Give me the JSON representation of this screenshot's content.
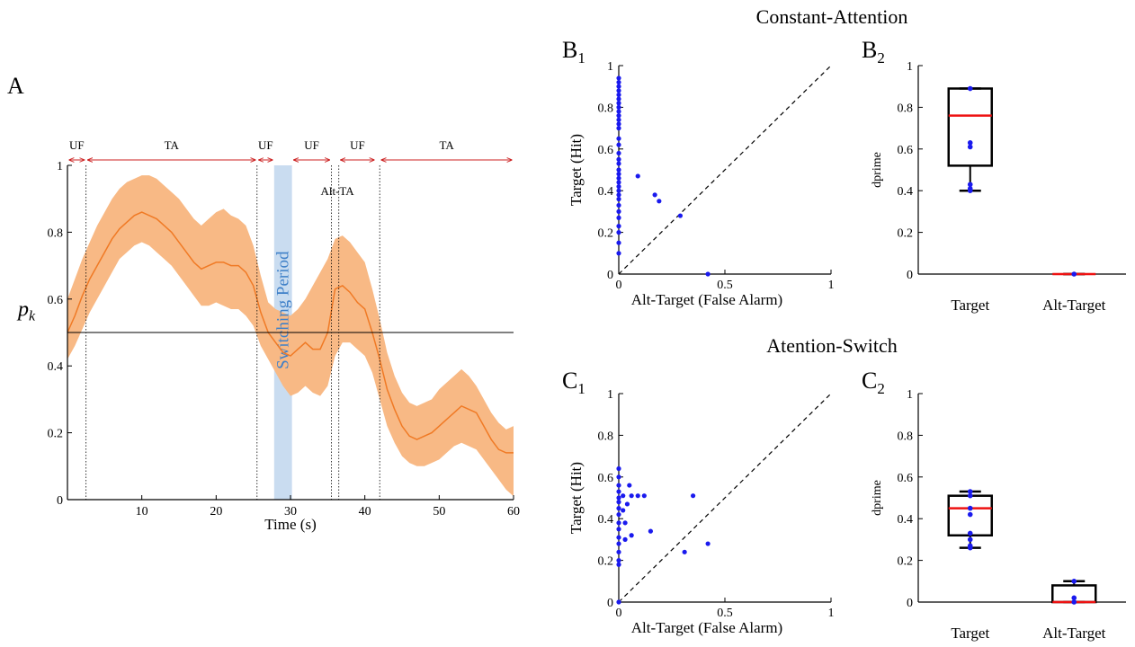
{
  "figure": {
    "titles": {
      "constant": "Constant-Attention",
      "switch": "Atention-Switch"
    },
    "panel_labels": {
      "A": "A",
      "B1": "B",
      "B1_sub": "1",
      "B2": "B",
      "B2_sub": "2",
      "C1": "C",
      "C1_sub": "1",
      "C2": "C",
      "C2_sub": "2"
    }
  },
  "chart_data": [
    {
      "id": "A",
      "type": "area",
      "xlabel": "Time (s)",
      "ylabel": "p_k",
      "ylabel_main": "p",
      "ylabel_sub": "k",
      "xlim": [
        0,
        60
      ],
      "ylim": [
        0,
        1
      ],
      "xticks": [
        10,
        20,
        30,
        40,
        50,
        60
      ],
      "yticks": [
        0,
        0.2,
        0.4,
        0.6,
        0.8,
        1
      ],
      "xtick_labels": [
        "10",
        "20",
        "30",
        "40",
        "50",
        "60"
      ],
      "ytick_labels": [
        "0",
        "0.2",
        "0.4",
        "0.6",
        "0.8",
        "1"
      ],
      "colors": {
        "band": "#f8b985",
        "mean": "#f07a25",
        "segments": "#cc2222",
        "switch": "#c9dcf0",
        "switch_text": "#3f80c8"
      },
      "reference_line": 0.5,
      "switch_period": {
        "label": "Switching Period",
        "x": [
          27.8,
          30.2
        ]
      },
      "dividers": [
        2.5,
        25.5,
        35.5,
        36.5,
        42
      ],
      "segments": [
        {
          "label": "UF",
          "x": [
            0,
            2.5
          ]
        },
        {
          "label": "TA",
          "x": [
            2.5,
            25.5
          ]
        },
        {
          "label": "UF",
          "x": [
            25.5,
            27.8
          ]
        },
        {
          "label": "UF",
          "x": [
            30.2,
            35.5
          ]
        },
        {
          "label": "UF",
          "x": [
            36.5,
            41.5
          ]
        },
        {
          "label": "TA",
          "x": [
            42,
            60
          ]
        }
      ],
      "annotation": "Alt-TA",
      "mean": {
        "x": [
          0,
          1,
          2,
          3,
          4,
          5,
          6,
          7,
          8,
          9,
          10,
          11,
          12,
          13,
          14,
          15,
          16,
          17,
          18,
          19,
          20,
          21,
          22,
          23,
          24,
          25,
          26,
          27,
          28,
          29,
          30,
          31,
          32,
          33,
          34,
          35,
          36,
          37,
          38,
          39,
          40,
          41,
          42,
          43,
          44,
          45,
          46,
          47,
          48,
          49,
          50,
          51,
          52,
          53,
          54,
          55,
          56,
          57,
          58,
          59,
          60
        ],
        "y": [
          0.5,
          0.55,
          0.61,
          0.66,
          0.7,
          0.74,
          0.78,
          0.81,
          0.83,
          0.85,
          0.86,
          0.85,
          0.84,
          0.82,
          0.8,
          0.77,
          0.74,
          0.71,
          0.69,
          0.7,
          0.71,
          0.71,
          0.7,
          0.7,
          0.68,
          0.64,
          0.56,
          0.5,
          0.47,
          0.44,
          0.43,
          0.45,
          0.47,
          0.45,
          0.45,
          0.5,
          0.63,
          0.64,
          0.62,
          0.59,
          0.57,
          0.5,
          0.42,
          0.33,
          0.27,
          0.22,
          0.19,
          0.18,
          0.19,
          0.2,
          0.22,
          0.24,
          0.26,
          0.28,
          0.27,
          0.26,
          0.22,
          0.18,
          0.15,
          0.14,
          0.14
        ]
      },
      "upper": [
        0.6,
        0.66,
        0.72,
        0.77,
        0.82,
        0.86,
        0.9,
        0.93,
        0.95,
        0.96,
        0.97,
        0.97,
        0.96,
        0.94,
        0.92,
        0.9,
        0.87,
        0.84,
        0.82,
        0.84,
        0.86,
        0.87,
        0.85,
        0.84,
        0.82,
        0.76,
        0.67,
        0.59,
        0.57,
        0.56,
        0.55,
        0.57,
        0.6,
        0.64,
        0.68,
        0.72,
        0.78,
        0.79,
        0.77,
        0.74,
        0.71,
        0.63,
        0.54,
        0.44,
        0.37,
        0.32,
        0.29,
        0.28,
        0.29,
        0.3,
        0.33,
        0.35,
        0.37,
        0.39,
        0.37,
        0.34,
        0.3,
        0.26,
        0.23,
        0.21,
        0.22
      ],
      "lower": [
        0.42,
        0.46,
        0.51,
        0.56,
        0.6,
        0.64,
        0.68,
        0.72,
        0.74,
        0.76,
        0.77,
        0.76,
        0.74,
        0.72,
        0.7,
        0.67,
        0.64,
        0.61,
        0.58,
        0.58,
        0.59,
        0.58,
        0.57,
        0.57,
        0.55,
        0.52,
        0.46,
        0.42,
        0.38,
        0.34,
        0.31,
        0.32,
        0.34,
        0.32,
        0.31,
        0.34,
        0.43,
        0.47,
        0.47,
        0.45,
        0.43,
        0.38,
        0.3,
        0.22,
        0.17,
        0.13,
        0.11,
        0.1,
        0.1,
        0.11,
        0.12,
        0.14,
        0.16,
        0.17,
        0.16,
        0.15,
        0.12,
        0.09,
        0.06,
        0.03,
        0.01
      ]
    },
    {
      "id": "B1",
      "type": "scatter",
      "xlabel": "Alt-Target (False Alarm)",
      "ylabel": "Target (Hit)",
      "xlim": [
        0,
        1
      ],
      "ylim": [
        0,
        1
      ],
      "xticks": [
        0,
        0.5,
        1
      ],
      "yticks": [
        0,
        0.2,
        0.4,
        0.6,
        0.8,
        1
      ],
      "xtick_labels": [
        "0",
        "0.5",
        "1"
      ],
      "ytick_labels": [
        "0",
        "0.2",
        "0.4",
        "0.6",
        "0.8",
        "1"
      ],
      "color": "#1a1aee",
      "points": [
        [
          0,
          0.94
        ],
        [
          0,
          0.92
        ],
        [
          0,
          0.9
        ],
        [
          0,
          0.88
        ],
        [
          0,
          0.86
        ],
        [
          0,
          0.84
        ],
        [
          0,
          0.82
        ],
        [
          0,
          0.8
        ],
        [
          0,
          0.78
        ],
        [
          0,
          0.76
        ],
        [
          0,
          0.74
        ],
        [
          0,
          0.72
        ],
        [
          0,
          0.7
        ],
        [
          0,
          0.65
        ],
        [
          0,
          0.62
        ],
        [
          0,
          0.58
        ],
        [
          0,
          0.55
        ],
        [
          0,
          0.53
        ],
        [
          0,
          0.5
        ],
        [
          0,
          0.48
        ],
        [
          0,
          0.46
        ],
        [
          0,
          0.44
        ],
        [
          0,
          0.42
        ],
        [
          0,
          0.4
        ],
        [
          0,
          0.38
        ],
        [
          0,
          0.36
        ],
        [
          0,
          0.33
        ],
        [
          0,
          0.3
        ],
        [
          0,
          0.27
        ],
        [
          0,
          0.23
        ],
        [
          0,
          0.2
        ],
        [
          0,
          0.15
        ],
        [
          0,
          0.1
        ],
        [
          0.09,
          0.47
        ],
        [
          0.17,
          0.38
        ],
        [
          0.19,
          0.35
        ],
        [
          0.29,
          0.28
        ],
        [
          0.42,
          0
        ]
      ]
    },
    {
      "id": "B2",
      "type": "box",
      "ylabel": "dprime",
      "ylim": [
        0,
        1
      ],
      "yticks": [
        0,
        0.2,
        0.4,
        0.6,
        0.8,
        1
      ],
      "ytick_labels": [
        "0",
        "0.2",
        "0.4",
        "0.6",
        "0.8",
        "1"
      ],
      "categories": [
        "Target",
        "Alt-Target"
      ],
      "colors": {
        "box": "#000000",
        "median": "#ee1111",
        "points": "#1a1aee"
      },
      "boxes": [
        {
          "q1": 0.52,
          "median": 0.76,
          "q3": 0.89,
          "whisker_low": 0.4,
          "whisker_high": 0.89,
          "points": [
            0.89,
            0.63,
            0.61,
            0.43,
            0.41,
            0.4
          ]
        },
        {
          "q1": 0,
          "median": 0,
          "q3": 0,
          "whisker_low": 0,
          "whisker_high": 0,
          "points": [
            0
          ]
        }
      ]
    },
    {
      "id": "C1",
      "type": "scatter",
      "xlabel": "Alt-Target (False Alarm)",
      "ylabel": "Target (Hit)",
      "xlim": [
        0,
        1
      ],
      "ylim": [
        0,
        1
      ],
      "xticks": [
        0,
        0.5,
        1
      ],
      "yticks": [
        0,
        0.2,
        0.4,
        0.6,
        0.8,
        1
      ],
      "xtick_labels": [
        "0",
        "0.5",
        "1"
      ],
      "ytick_labels": [
        "0",
        "0.2",
        "0.4",
        "0.6",
        "0.8",
        "1"
      ],
      "color": "#1a1aee",
      "points": [
        [
          0,
          0.64
        ],
        [
          0,
          0.6
        ],
        [
          0,
          0.56
        ],
        [
          0,
          0.53
        ],
        [
          0,
          0.5
        ],
        [
          0,
          0.48
        ],
        [
          0,
          0.45
        ],
        [
          0,
          0.42
        ],
        [
          0,
          0.38
        ],
        [
          0,
          0.35
        ],
        [
          0,
          0.31
        ],
        [
          0,
          0.28
        ],
        [
          0,
          0.24
        ],
        [
          0,
          0.2
        ],
        [
          0,
          0.18
        ],
        [
          0,
          0
        ],
        [
          0.02,
          0.51
        ],
        [
          0.02,
          0.44
        ],
        [
          0.03,
          0.38
        ],
        [
          0.03,
          0.3
        ],
        [
          0.04,
          0.47
        ],
        [
          0.05,
          0.56
        ],
        [
          0.06,
          0.51
        ],
        [
          0.06,
          0.32
        ],
        [
          0.09,
          0.51
        ],
        [
          0.12,
          0.51
        ],
        [
          0.15,
          0.34
        ],
        [
          0.31,
          0.24
        ],
        [
          0.35,
          0.51
        ],
        [
          0.42,
          0.28
        ]
      ]
    },
    {
      "id": "C2",
      "type": "box",
      "ylabel": "dprime",
      "ylim": [
        0,
        1
      ],
      "yticks": [
        0,
        0.2,
        0.4,
        0.6,
        0.8,
        1
      ],
      "ytick_labels": [
        "0",
        "0.2",
        "0.4",
        "0.6",
        "0.8",
        "1"
      ],
      "categories": [
        "Target",
        "Alt-Target"
      ],
      "colors": {
        "box": "#000000",
        "median": "#ee1111",
        "points": "#1a1aee"
      },
      "boxes": [
        {
          "q1": 0.32,
          "median": 0.45,
          "q3": 0.51,
          "whisker_low": 0.26,
          "whisker_high": 0.53,
          "points": [
            0.53,
            0.51,
            0.45,
            0.42,
            0.33,
            0.3,
            0.27,
            0.26
          ]
        },
        {
          "q1": 0,
          "median": 0,
          "q3": 0.08,
          "whisker_low": 0,
          "whisker_high": 0.1,
          "points": [
            0.1,
            0.02,
            0
          ]
        }
      ]
    }
  ]
}
